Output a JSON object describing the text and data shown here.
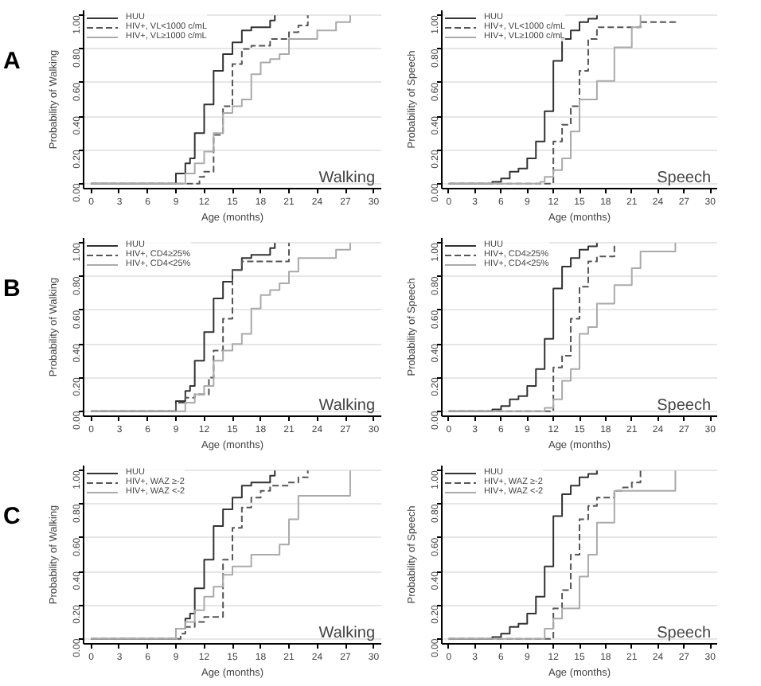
{
  "chart_data": [
    {
      "type": "step",
      "xlabel": "Age (months)",
      "ylabel": "Probability of Walking",
      "annotations": [
        "A",
        "Walking"
      ],
      "xlim": [
        -0.8,
        30.8
      ],
      "ylim": [
        -0.03,
        1.03
      ],
      "xticks": [
        0,
        3,
        6,
        9,
        12,
        15,
        18,
        21,
        24,
        27,
        30
      ],
      "yticks": [
        {
          "value": 0,
          "label": "0.00"
        },
        {
          "value": 0.2,
          "label": "0.20"
        },
        {
          "value": 0.4,
          "label": "0.40"
        },
        {
          "value": 0.6,
          "label": "0.60"
        },
        {
          "value": 0.8,
          "label": "0.80"
        },
        {
          "value": 1,
          "label": "1.00"
        }
      ],
      "grid": "y",
      "legend": "top left",
      "series": [
        {
          "name": "HUU",
          "color": "#333333",
          "line_style": "solid",
          "x": [
            0,
            9,
            10,
            10.5,
            11,
            12,
            13,
            14,
            15,
            16,
            17,
            19,
            19.5
          ],
          "values": [
            0,
            0.06,
            0.12,
            0.15,
            0.3,
            0.47,
            0.67,
            0.77,
            0.84,
            0.91,
            0.93,
            0.97,
            1.0
          ]
        },
        {
          "name": "HIV+, VL<1000 c/mL",
          "color": "#555555",
          "line_style": "dashed",
          "x": [
            0,
            11.5,
            12,
            13,
            14,
            15,
            16,
            17,
            19,
            21,
            22,
            23
          ],
          "values": [
            0,
            0.04,
            0.07,
            0.29,
            0.46,
            0.71,
            0.8,
            0.82,
            0.86,
            0.9,
            0.94,
            1.0
          ]
        },
        {
          "name": "HIV+, VL≥1000 c/mL",
          "color": "#aaaaaa",
          "line_style": "solid",
          "x": [
            0,
            10,
            11,
            12,
            13,
            14,
            15,
            16,
            17,
            18,
            19,
            20,
            21,
            24,
            26,
            27.5
          ],
          "values": [
            0,
            0.06,
            0.12,
            0.19,
            0.3,
            0.42,
            0.46,
            0.5,
            0.65,
            0.72,
            0.74,
            0.77,
            0.86,
            0.91,
            0.96,
            1.0
          ]
        }
      ]
    },
    {
      "type": "step",
      "xlabel": "Age (months)",
      "ylabel": "Probability of Speech",
      "annotations": [
        "Speech"
      ],
      "xlim": [
        -0.8,
        30.8
      ],
      "ylim": [
        -0.03,
        1.03
      ],
      "xticks": [
        0,
        3,
        6,
        9,
        12,
        15,
        18,
        21,
        24,
        27,
        30
      ],
      "yticks": [
        {
          "value": 0,
          "label": "0.00"
        },
        {
          "value": 0.2,
          "label": "0.20"
        },
        {
          "value": 0.4,
          "label": "0.40"
        },
        {
          "value": 0.6,
          "label": "0.60"
        },
        {
          "value": 0.8,
          "label": "0.80"
        },
        {
          "value": 1,
          "label": "1.00"
        }
      ],
      "grid": "y",
      "legend": "top left",
      "series": [
        {
          "name": "HUU",
          "color": "#333333",
          "line_style": "solid",
          "x": [
            0,
            5,
            6,
            7,
            8,
            9,
            10,
            11,
            12,
            13,
            14,
            15,
            16,
            17
          ],
          "values": [
            0,
            0.01,
            0.03,
            0.07,
            0.09,
            0.15,
            0.25,
            0.43,
            0.73,
            0.86,
            0.91,
            0.96,
            0.98,
            1.0
          ]
        },
        {
          "name": "HIV+, VL<1000 c/mL",
          "color": "#555555",
          "line_style": "dashed",
          "x": [
            0,
            12,
            13,
            14,
            15,
            16,
            17,
            22,
            26
          ],
          "values": [
            0,
            0.25,
            0.35,
            0.46,
            0.67,
            0.86,
            0.93,
            0.96,
            0.97
          ]
        },
        {
          "name": "HIV+, VL≥1000 c/mL",
          "color": "#aaaaaa",
          "line_style": "solid",
          "x": [
            0,
            10.5,
            11,
            12,
            13,
            14,
            15,
            17,
            19,
            21,
            22
          ],
          "values": [
            0,
            0.01,
            0.04,
            0.08,
            0.15,
            0.31,
            0.5,
            0.61,
            0.81,
            0.93,
            1.0
          ]
        }
      ]
    },
    {
      "type": "step",
      "xlabel": "Age (months)",
      "ylabel": "Probability of Walking",
      "annotations": [
        "B",
        "Walking"
      ],
      "xlim": [
        -0.8,
        30.8
      ],
      "ylim": [
        -0.03,
        1.03
      ],
      "xticks": [
        0,
        3,
        6,
        9,
        12,
        15,
        18,
        21,
        24,
        27,
        30
      ],
      "yticks": [
        {
          "value": 0,
          "label": "0.00"
        },
        {
          "value": 0.2,
          "label": "0.20"
        },
        {
          "value": 0.4,
          "label": "0.40"
        },
        {
          "value": 0.6,
          "label": "0.60"
        },
        {
          "value": 0.8,
          "label": "0.80"
        },
        {
          "value": 1,
          "label": "1.00"
        }
      ],
      "grid": "y",
      "legend": "top left",
      "series": [
        {
          "name": "HUU",
          "color": "#333333",
          "line_style": "solid",
          "x": [
            0,
            9,
            10,
            10.5,
            11,
            12,
            13,
            14,
            15,
            16,
            17,
            19,
            19.5
          ],
          "values": [
            0,
            0.06,
            0.12,
            0.15,
            0.3,
            0.47,
            0.67,
            0.77,
            0.84,
            0.91,
            0.93,
            0.97,
            1.0
          ]
        },
        {
          "name": "HIV+, CD4≥25%",
          "color": "#555555",
          "line_style": "dashed",
          "x": [
            0,
            9,
            10,
            11,
            12.5,
            13,
            14,
            15,
            16,
            21
          ],
          "values": [
            0,
            0.05,
            0.08,
            0.1,
            0.2,
            0.36,
            0.55,
            0.84,
            0.89,
            1.0
          ]
        },
        {
          "name": "HIV+, CD4<25%",
          "color": "#aaaaaa",
          "line_style": "solid",
          "x": [
            0,
            10,
            11,
            12,
            13,
            14,
            15,
            16,
            17,
            18,
            19,
            20,
            21,
            22,
            26,
            27.5
          ],
          "values": [
            0,
            0.05,
            0.1,
            0.15,
            0.3,
            0.36,
            0.4,
            0.46,
            0.61,
            0.69,
            0.72,
            0.76,
            0.83,
            0.91,
            0.96,
            1.0
          ]
        }
      ]
    },
    {
      "type": "step",
      "xlabel": "Age (months)",
      "ylabel": "Probability of Speech",
      "annotations": [
        "Speech"
      ],
      "xlim": [
        -0.8,
        30.8
      ],
      "ylim": [
        -0.03,
        1.03
      ],
      "xticks": [
        0,
        3,
        6,
        9,
        12,
        15,
        18,
        21,
        24,
        27,
        30
      ],
      "yticks": [
        {
          "value": 0,
          "label": "0.00"
        },
        {
          "value": 0.2,
          "label": "0.20"
        },
        {
          "value": 0.4,
          "label": "0.40"
        },
        {
          "value": 0.6,
          "label": "0.60"
        },
        {
          "value": 0.8,
          "label": "0.80"
        },
        {
          "value": 1,
          "label": "1.00"
        }
      ],
      "grid": "y",
      "legend": "top left",
      "series": [
        {
          "name": "HUU",
          "color": "#333333",
          "line_style": "solid",
          "x": [
            0,
            5,
            6,
            7,
            8,
            9,
            10,
            11,
            12,
            13,
            14,
            15,
            16,
            17
          ],
          "values": [
            0,
            0.01,
            0.03,
            0.07,
            0.09,
            0.15,
            0.25,
            0.43,
            0.73,
            0.86,
            0.91,
            0.96,
            0.98,
            1.0
          ]
        },
        {
          "name": "HIV+, CD4≥25%",
          "color": "#555555",
          "line_style": "dashed",
          "x": [
            0,
            12,
            13,
            14,
            15,
            16,
            17,
            19
          ],
          "values": [
            0,
            0.26,
            0.33,
            0.55,
            0.74,
            0.89,
            0.92,
            1.0
          ]
        },
        {
          "name": "HIV+, CD4<25%",
          "color": "#aaaaaa",
          "line_style": "solid",
          "x": [
            0,
            11,
            12,
            13,
            14,
            15,
            16,
            17,
            19,
            21,
            22,
            26
          ],
          "values": [
            0,
            0.02,
            0.07,
            0.18,
            0.25,
            0.46,
            0.5,
            0.64,
            0.75,
            0.85,
            0.95,
            1.0
          ]
        }
      ]
    },
    {
      "type": "step",
      "xlabel": "Age (months)",
      "ylabel": "Probability of Walking",
      "annotations": [
        "C",
        "Walking"
      ],
      "xlim": [
        -0.8,
        30.8
      ],
      "ylim": [
        -0.03,
        1.03
      ],
      "xticks": [
        0,
        3,
        6,
        9,
        12,
        15,
        18,
        21,
        24,
        27,
        30
      ],
      "yticks": [
        {
          "value": 0,
          "label": "0.00"
        },
        {
          "value": 0.2,
          "label": "0.20"
        },
        {
          "value": 0.4,
          "label": "0.40"
        },
        {
          "value": 0.6,
          "label": "0.60"
        },
        {
          "value": 0.8,
          "label": "0.80"
        },
        {
          "value": 1,
          "label": "1.00"
        }
      ],
      "grid": "y",
      "legend": "top left",
      "series": [
        {
          "name": "HUU",
          "color": "#333333",
          "line_style": "solid",
          "x": [
            0,
            9,
            10,
            10.5,
            11,
            12,
            13,
            14,
            15,
            16,
            17,
            19,
            19.5
          ],
          "values": [
            0,
            0.06,
            0.12,
            0.15,
            0.3,
            0.47,
            0.67,
            0.77,
            0.84,
            0.91,
            0.93,
            0.97,
            1.0
          ]
        },
        {
          "name": "HIV+, WAZ ≥-2",
          "color": "#555555",
          "line_style": "dashed",
          "x": [
            0,
            9.5,
            10,
            11,
            12,
            14,
            15,
            16,
            17,
            18,
            19,
            21,
            22,
            23
          ],
          "values": [
            0,
            0.03,
            0.07,
            0.1,
            0.13,
            0.47,
            0.66,
            0.78,
            0.84,
            0.88,
            0.91,
            0.93,
            0.96,
            1.0
          ]
        },
        {
          "name": "HIV+, WAZ <-2",
          "color": "#aaaaaa",
          "line_style": "solid",
          "x": [
            0,
            9,
            10,
            11,
            12,
            13,
            14,
            15,
            17,
            20,
            21,
            22,
            27.5
          ],
          "values": [
            0,
            0.06,
            0.1,
            0.17,
            0.25,
            0.31,
            0.38,
            0.43,
            0.5,
            0.56,
            0.71,
            0.85,
            1.0
          ]
        }
      ]
    },
    {
      "type": "step",
      "xlabel": "Age (months)",
      "ylabel": "Probability of Speech",
      "annotations": [
        "Speech"
      ],
      "xlim": [
        -0.8,
        30.8
      ],
      "ylim": [
        -0.03,
        1.03
      ],
      "xticks": [
        0,
        3,
        6,
        9,
        12,
        15,
        18,
        21,
        24,
        27,
        30
      ],
      "yticks": [
        {
          "value": 0,
          "label": "0.00"
        },
        {
          "value": 0.2,
          "label": "0.20"
        },
        {
          "value": 0.4,
          "label": "0.40"
        },
        {
          "value": 0.6,
          "label": "0.60"
        },
        {
          "value": 0.8,
          "label": "0.80"
        },
        {
          "value": 1,
          "label": "1.00"
        }
      ],
      "grid": "y",
      "legend": "top left",
      "series": [
        {
          "name": "HUU",
          "color": "#333333",
          "line_style": "solid",
          "x": [
            0,
            5,
            6,
            7,
            8,
            9,
            10,
            11,
            12,
            13,
            14,
            15,
            16,
            17
          ],
          "values": [
            0,
            0.01,
            0.03,
            0.07,
            0.09,
            0.15,
            0.25,
            0.43,
            0.73,
            0.86,
            0.91,
            0.96,
            0.98,
            1.0
          ]
        },
        {
          "name": "HIV+, WAZ ≥-2",
          "color": "#555555",
          "line_style": "dashed",
          "x": [
            0,
            12,
            13,
            14,
            15,
            16,
            17,
            19,
            20,
            21,
            22
          ],
          "values": [
            0,
            0.18,
            0.29,
            0.5,
            0.71,
            0.79,
            0.84,
            0.88,
            0.9,
            0.93,
            1.0
          ]
        },
        {
          "name": "HIV+, WAZ <-2",
          "color": "#aaaaaa",
          "line_style": "solid",
          "x": [
            0,
            11,
            12,
            13,
            15,
            16,
            17,
            19,
            26
          ],
          "values": [
            0,
            0.06,
            0.12,
            0.18,
            0.37,
            0.5,
            0.69,
            0.88,
            1.0
          ]
        }
      ]
    }
  ]
}
